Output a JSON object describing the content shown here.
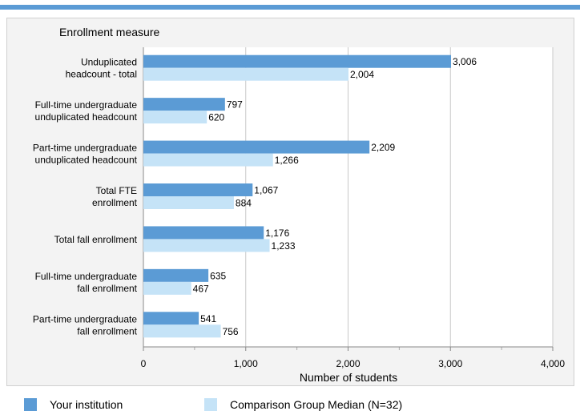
{
  "colors": {
    "top_bar": "#5b9bd5",
    "panel": "#f3f3f3",
    "institution": "#5b9bd5",
    "comparison": "#c5e3f7",
    "grid": "#c8c8c8"
  },
  "chart_data": {
    "type": "bar",
    "orientation": "horizontal",
    "y_axis_title": "Enrollment measure",
    "xlabel": "Number of students",
    "xlim": [
      0,
      4000
    ],
    "x_ticks": [
      "0",
      "1,000",
      "2,000",
      "3,000",
      "4,000"
    ],
    "x_tick_values": [
      0,
      1000,
      2000,
      3000,
      4000
    ],
    "grid": true,
    "categories": [
      [
        "Unduplicated",
        "headcount - total"
      ],
      [
        "Full-time undergraduate",
        "unduplicated headcount"
      ],
      [
        "Part-time undergraduate",
        "unduplicated headcount"
      ],
      [
        "Total FTE",
        "enrollment"
      ],
      [
        "Total fall enrollment"
      ],
      [
        "Full-time undergraduate",
        "fall enrollment"
      ],
      [
        "Part-time undergraduate",
        "fall enrollment"
      ]
    ],
    "series": [
      {
        "name": "Your institution",
        "values": [
          3006,
          797,
          2209,
          1067,
          1176,
          635,
          541
        ],
        "labels": [
          "3,006",
          "797",
          "2,209",
          "1,067",
          "1,176",
          "635",
          "541"
        ]
      },
      {
        "name": "Comparison Group Median (N=32)",
        "values": [
          2004,
          620,
          1266,
          884,
          1233,
          467,
          756
        ],
        "labels": [
          "2,004",
          "620",
          "1,266",
          "884",
          "1,233",
          "467",
          "756"
        ]
      }
    ],
    "legend_position": "bottom"
  },
  "legend": {
    "institution": "Your institution",
    "comparison": "Comparison Group Median (N=32)"
  }
}
